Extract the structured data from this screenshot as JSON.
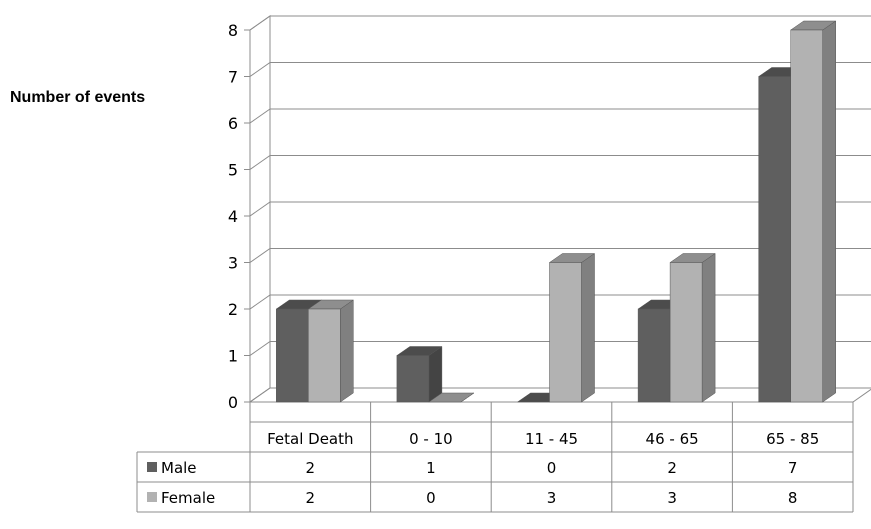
{
  "chart_data": {
    "type": "bar",
    "ylabel": "Number of events",
    "ylim": [
      0,
      8
    ],
    "yticks": [
      "0",
      "1",
      "2",
      "3",
      "4",
      "5",
      "6",
      "7",
      "8"
    ],
    "categories": [
      "Fetal Death",
      "0 - 10",
      "11 - 45",
      "46 - 65",
      "65 - 85"
    ],
    "series": [
      {
        "name": "Male",
        "values": [
          2,
          1,
          0,
          2,
          7
        ],
        "color": "#5f5f5f"
      },
      {
        "name": "Female",
        "values": [
          2,
          0,
          3,
          3,
          8
        ],
        "color": "#b2b2b2"
      }
    ],
    "data_table": {
      "rows": [
        {
          "label": "Male",
          "cells": [
            "2",
            "1",
            "0",
            "2",
            "7"
          ]
        },
        {
          "label": "Female",
          "cells": [
            "2",
            "0",
            "3",
            "3",
            "8"
          ]
        }
      ]
    },
    "grid": true,
    "legend": "data-table"
  }
}
